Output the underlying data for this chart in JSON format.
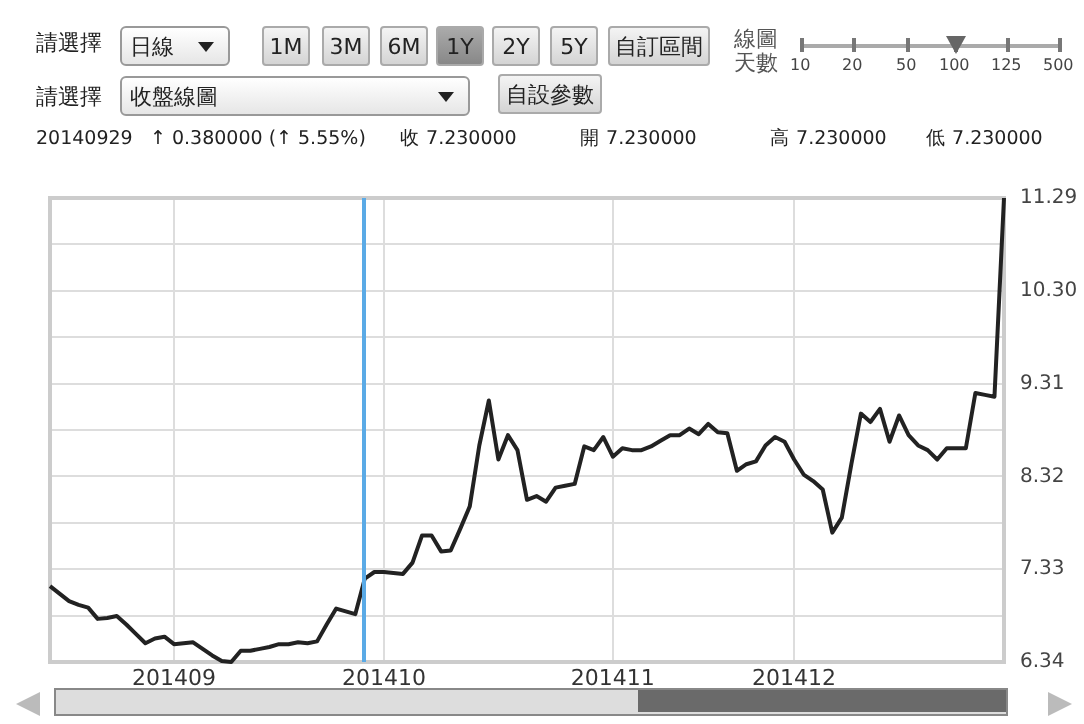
{
  "chart_data": {
    "type": "line",
    "categories": [
      null,
      null,
      null,
      null,
      null,
      null,
      null,
      null,
      null,
      null,
      null,
      null,
      null,
      "201409",
      null,
      null,
      null,
      null,
      null,
      null,
      null,
      null,
      null,
      null,
      null,
      null,
      null,
      null,
      null,
      null,
      null,
      null,
      null,
      null,
      null,
      "201410",
      null,
      null,
      null,
      null,
      null,
      null,
      null,
      null,
      null,
      null,
      null,
      null,
      null,
      null,
      null,
      null,
      null,
      null,
      null,
      null,
      null,
      null,
      null,
      "201411",
      null,
      null,
      null,
      null,
      null,
      null,
      null,
      null,
      null,
      null,
      null,
      null,
      null,
      null,
      null,
      null,
      null,
      null,
      "201412",
      null,
      null,
      null,
      null,
      null,
      null,
      null,
      null,
      null,
      null,
      null,
      null,
      null,
      null,
      null,
      null,
      null,
      null,
      null,
      null,
      null,
      null
    ],
    "series": [
      {
        "color": "#222222",
        "values": [
          7.15,
          7.07,
          6.99,
          6.95,
          6.92,
          6.8,
          6.81,
          6.83,
          6.74,
          6.64,
          6.54,
          6.59,
          6.61,
          6.53,
          6.54,
          6.55,
          6.48,
          6.41,
          6.35,
          6.34,
          6.46,
          6.46,
          6.48,
          6.5,
          6.53,
          6.53,
          6.55,
          6.54,
          6.56,
          6.74,
          6.91,
          6.88,
          6.85,
          7.23,
          7.3,
          7.3,
          7.29,
          7.28,
          7.4,
          7.69,
          7.69,
          7.52,
          7.53,
          7.76,
          8.0,
          8.65,
          9.13,
          8.5,
          8.76,
          8.6,
          8.07,
          8.11,
          8.05,
          8.2,
          8.22,
          8.24,
          8.64,
          8.6,
          8.74,
          8.53,
          8.62,
          8.6,
          8.6,
          8.64,
          8.7,
          8.76,
          8.76,
          8.83,
          8.77,
          8.88,
          8.79,
          8.78,
          8.38,
          8.45,
          8.48,
          8.65,
          8.74,
          8.69,
          8.5,
          8.34,
          8.27,
          8.18,
          7.72,
          7.88,
          8.45,
          8.99,
          8.9,
          9.04,
          8.69,
          8.97,
          8.76,
          8.65,
          8.6,
          8.5,
          8.62,
          8.62,
          8.62,
          9.21,
          9.19,
          9.17,
          11.29
        ]
      }
    ],
    "ylim": [
      6.34,
      11.29
    ],
    "yticks": [
      6.34,
      {
        "value": 6.835,
        "label": null
      },
      7.33,
      {
        "value": 7.825,
        "label": null
      },
      8.32,
      {
        "value": 8.815,
        "label": null
      },
      9.31,
      {
        "value": 9.805,
        "label": null
      },
      {
        "value": 10.3,
        "label": "10.30"
      },
      {
        "value": 10.795,
        "label": null
      },
      11.29
    ],
    "grid": true,
    "legend": false,
    "marker": "none",
    "line_style": "solid",
    "annotations": [
      "請選擇",
      "日線",
      "1M",
      "3M",
      "6M",
      "1Y",
      "2Y",
      "5Y",
      "自訂區間",
      "線圖天數",
      "10",
      "20",
      "50",
      "100",
      "125",
      "500",
      "請選擇",
      "收盤線圖",
      "自設參數",
      "20140929",
      "↑ 0.380000 (↑ 5.55%)",
      "收 7.230000",
      "開 7.230000",
      "高 7.230000",
      "低 7.230000"
    ]
  }
}
